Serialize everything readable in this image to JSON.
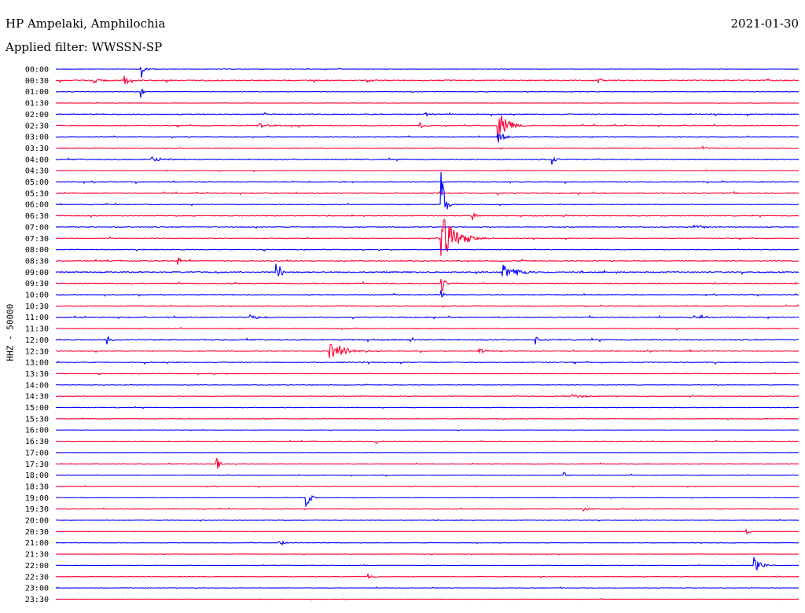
{
  "header": {
    "station": "HP Ampelaki, Amphilochia",
    "date": "2021-01-30",
    "filter": "Applied filter: WWSSN-SP"
  },
  "colors": {
    "even_trace": "#0000ff",
    "odd_trace": "#ff0033",
    "text": "#000000",
    "background": "#ffffff"
  },
  "chart_data": {
    "type": "line",
    "title": "HP Ampelaki, Amphilochia",
    "ylabel": "HHZ - 50000",
    "xlabel": "",
    "grid": false,
    "legend": "none",
    "series_colors": [
      "#0000ff",
      "#ff0033"
    ],
    "categories": [
      "00:00",
      "00:30",
      "01:00",
      "01:30",
      "02:00",
      "02:30",
      "03:00",
      "03:30",
      "04:00",
      "04:30",
      "05:00",
      "05:30",
      "06:00",
      "06:30",
      "07:00",
      "07:30",
      "08:00",
      "08:30",
      "09:00",
      "09:30",
      "10:00",
      "10:30",
      "11:00",
      "11:30",
      "12:00",
      "12:30",
      "13:00",
      "13:30",
      "14:00",
      "14:30",
      "15:00",
      "15:30",
      "16:00",
      "16:30",
      "17:00",
      "17:30",
      "18:00",
      "18:30",
      "19:00",
      "19:30",
      "20:00",
      "20:30",
      "21:00",
      "21:30",
      "22:00",
      "22:30",
      "23:00",
      "23:30"
    ],
    "noise_level": [
      0.3,
      0.6,
      0.3,
      0.2,
      0.5,
      0.5,
      0.3,
      0.3,
      0.5,
      0.3,
      0.5,
      0.5,
      0.4,
      0.4,
      0.5,
      0.4,
      0.4,
      0.5,
      0.7,
      0.5,
      0.4,
      0.4,
      0.5,
      0.4,
      0.6,
      0.5,
      0.5,
      0.3,
      0.3,
      0.3,
      0.3,
      0.3,
      0.2,
      0.3,
      0.2,
      0.3,
      0.3,
      0.3,
      0.2,
      0.3,
      0.3,
      0.2,
      0.2,
      0.2,
      0.2,
      0.3,
      0.3,
      0.2
    ],
    "events": [
      {
        "trace": 0,
        "pos": 0.115,
        "amp": 16,
        "dur": 0.002
      },
      {
        "trace": 0,
        "pos": 0.118,
        "amp": 4,
        "dur": 0.008
      },
      {
        "trace": 1,
        "pos": 0.093,
        "amp": 8,
        "dur": 0.004
      },
      {
        "trace": 1,
        "pos": 0.05,
        "amp": 3,
        "dur": 0.012
      },
      {
        "trace": 1,
        "pos": 0.73,
        "amp": 4,
        "dur": 0.004
      },
      {
        "trace": 2,
        "pos": 0.115,
        "amp": 12,
        "dur": 0.002
      },
      {
        "trace": 4,
        "pos": 0.497,
        "amp": 3,
        "dur": 0.006
      },
      {
        "trace": 5,
        "pos": 0.595,
        "amp": 20,
        "dur": 0.012
      },
      {
        "trace": 5,
        "pos": 0.49,
        "amp": 5,
        "dur": 0.006
      },
      {
        "trace": 5,
        "pos": 0.275,
        "amp": 3,
        "dur": 0.012
      },
      {
        "trace": 6,
        "pos": 0.595,
        "amp": 8,
        "dur": 0.008
      },
      {
        "trace": 7,
        "pos": 0.87,
        "amp": 4,
        "dur": 0.005
      },
      {
        "trace": 8,
        "pos": 0.128,
        "amp": 4,
        "dur": 0.014
      },
      {
        "trace": 8,
        "pos": 0.668,
        "amp": 7,
        "dur": 0.004
      },
      {
        "trace": 12,
        "pos": 0.519,
        "amp": 52,
        "dur": 0.004
      },
      {
        "trace": 13,
        "pos": 0.56,
        "amp": 8,
        "dur": 0.006
      },
      {
        "trace": 15,
        "pos": 0.519,
        "amp": 30,
        "dur": 0.018
      },
      {
        "trace": 14,
        "pos": 0.86,
        "amp": 3,
        "dur": 0.012
      },
      {
        "trace": 17,
        "pos": 0.165,
        "amp": 5,
        "dur": 0.004
      },
      {
        "trace": 18,
        "pos": 0.297,
        "amp": 20,
        "dur": 0.005
      },
      {
        "trace": 18,
        "pos": 0.601,
        "amp": 10,
        "dur": 0.018
      },
      {
        "trace": 19,
        "pos": 0.519,
        "amp": 14,
        "dur": 0.004
      },
      {
        "trace": 20,
        "pos": 0.519,
        "amp": 6,
        "dur": 0.003
      },
      {
        "trace": 22,
        "pos": 0.262,
        "amp": 4,
        "dur": 0.01
      },
      {
        "trace": 22,
        "pos": 0.86,
        "amp": 3,
        "dur": 0.01
      },
      {
        "trace": 24,
        "pos": 0.069,
        "amp": 8,
        "dur": 0.004
      },
      {
        "trace": 24,
        "pos": 0.646,
        "amp": 6,
        "dur": 0.003
      },
      {
        "trace": 25,
        "pos": 0.369,
        "amp": 14,
        "dur": 0.02
      },
      {
        "trace": 25,
        "pos": 0.57,
        "amp": 3,
        "dur": 0.012
      },
      {
        "trace": 29,
        "pos": 0.695,
        "amp": 3,
        "dur": 0.016
      },
      {
        "trace": 33,
        "pos": 0.43,
        "amp": 4,
        "dur": 0.004
      },
      {
        "trace": 35,
        "pos": 0.216,
        "amp": 10,
        "dur": 0.004
      },
      {
        "trace": 36,
        "pos": 0.684,
        "amp": 4,
        "dur": 0.004
      },
      {
        "trace": 38,
        "pos": 0.337,
        "amp": 18,
        "dur": 0.004
      },
      {
        "trace": 39,
        "pos": 0.71,
        "amp": 3,
        "dur": 0.006
      },
      {
        "trace": 41,
        "pos": 0.93,
        "amp": 3,
        "dur": 0.004
      },
      {
        "trace": 42,
        "pos": 0.3,
        "amp": 5,
        "dur": 0.006
      },
      {
        "trace": 44,
        "pos": 0.94,
        "amp": 12,
        "dur": 0.008
      },
      {
        "trace": 45,
        "pos": 0.42,
        "amp": 3,
        "dur": 0.006
      }
    ]
  }
}
